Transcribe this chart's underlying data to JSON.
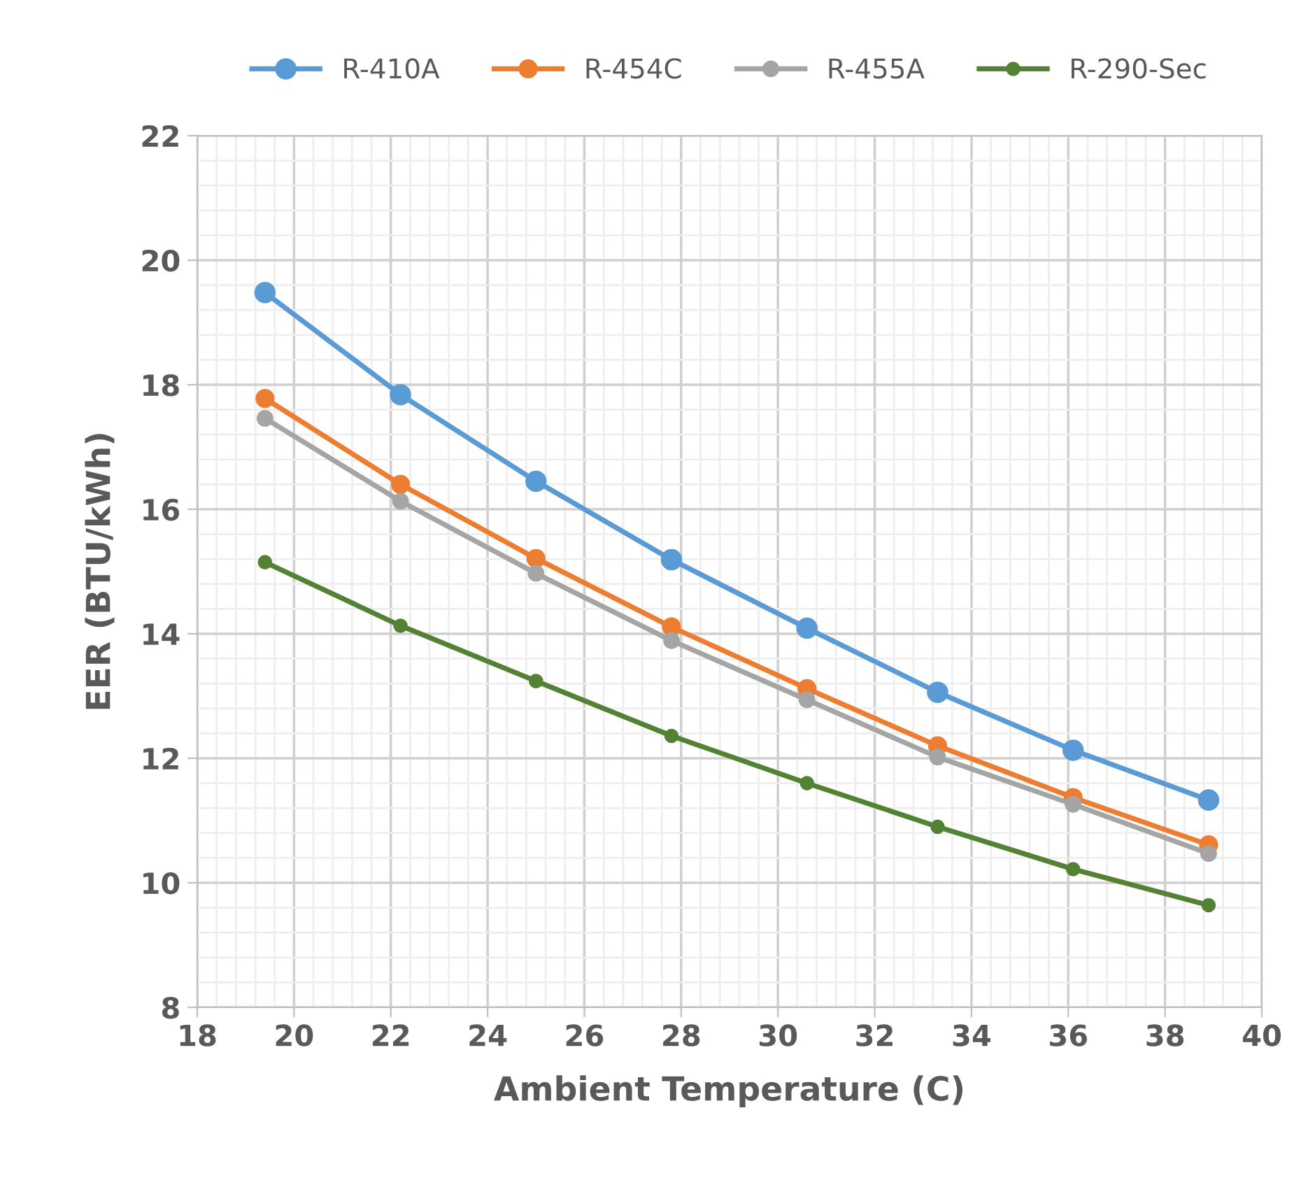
{
  "chart_data": {
    "type": "line",
    "xlabel": "Ambient Temperature (C)",
    "ylabel": "EER (BTU/kWh)",
    "x": [
      19.4,
      22.2,
      25.0,
      27.8,
      30.6,
      33.3,
      36.1,
      38.9
    ],
    "series": [
      {
        "name": "R-410A",
        "color": "#5b9bd5",
        "values": [
          19.48,
          17.84,
          16.45,
          15.19,
          14.09,
          13.06,
          12.13,
          11.33
        ]
      },
      {
        "name": "R-454C",
        "color": "#ed7d31",
        "values": [
          17.78,
          16.4,
          15.21,
          14.11,
          13.12,
          12.2,
          11.37,
          10.61
        ]
      },
      {
        "name": "R-455A",
        "color": "#a5a5a5",
        "values": [
          17.46,
          16.13,
          14.97,
          13.89,
          12.94,
          12.02,
          11.26,
          10.47
        ]
      },
      {
        "name": "R-290-Sec",
        "color": "#548235",
        "values": [
          15.15,
          14.13,
          13.24,
          12.36,
          11.6,
          10.9,
          10.22,
          9.64
        ]
      }
    ],
    "xlim": [
      18,
      40
    ],
    "xticks": [
      18,
      20,
      22,
      24,
      26,
      28,
      30,
      32,
      34,
      36,
      38,
      40
    ],
    "ylim": [
      8,
      22
    ],
    "yticks": [
      8,
      10,
      12,
      14,
      16,
      18,
      20,
      22
    ],
    "grid": true,
    "legend": "top",
    "marker": "circle",
    "line_style": "solid"
  }
}
